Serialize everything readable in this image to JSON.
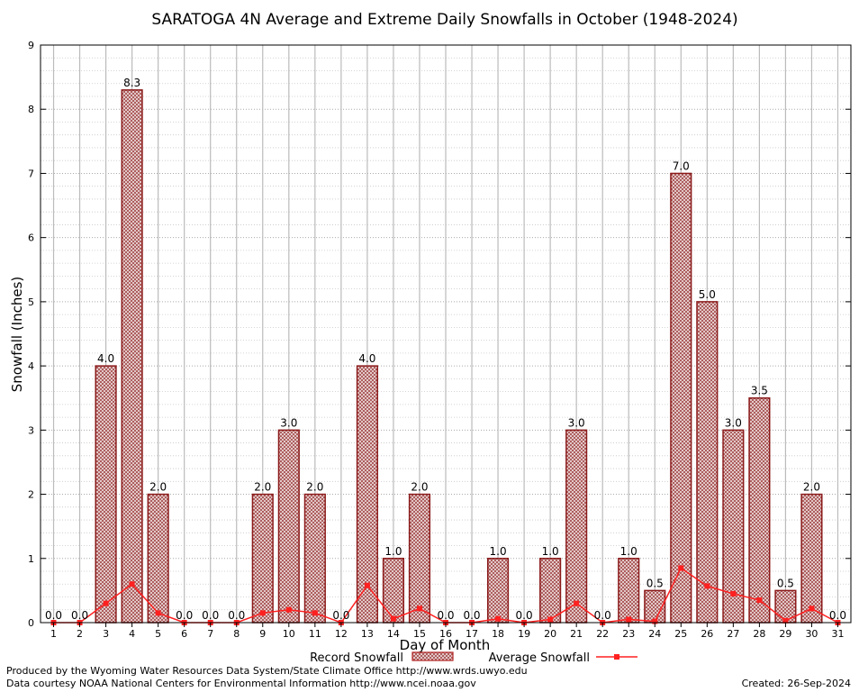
{
  "chart_data": {
    "type": "bar",
    "title": "SARATOGA 4N Average and Extreme Daily Snowfalls in October (1948-2024)",
    "xlabel": "Day of Month",
    "ylabel": "Snowfall (Inches)",
    "ylim": [
      0,
      9
    ],
    "yticks": [
      "0",
      "1",
      "2",
      "3",
      "4",
      "5",
      "6",
      "7",
      "8",
      "9"
    ],
    "categories": [
      "1",
      "2",
      "3",
      "4",
      "5",
      "6",
      "7",
      "8",
      "9",
      "10",
      "11",
      "12",
      "13",
      "14",
      "15",
      "16",
      "17",
      "18",
      "19",
      "20",
      "21",
      "22",
      "23",
      "24",
      "25",
      "26",
      "27",
      "28",
      "29",
      "30",
      "31"
    ],
    "series": [
      {
        "name": "Record Snowfall",
        "type": "bar",
        "color": "#b22222",
        "values": [
          0.0,
          0.0,
          4.0,
          8.3,
          2.0,
          0.0,
          0.0,
          0.0,
          2.0,
          3.0,
          2.0,
          0.0,
          4.0,
          1.0,
          2.0,
          0.0,
          0.0,
          1.0,
          0.0,
          1.0,
          3.0,
          0.0,
          1.0,
          0.5,
          7.0,
          5.0,
          3.0,
          3.5,
          0.5,
          2.0,
          0.0
        ],
        "labels": [
          "0.0",
          "0.0",
          "4.0",
          "8.3",
          "2.0",
          "0.0",
          "0.0",
          "0.0",
          "2.0",
          "3.0",
          "2.0",
          "0.0",
          "4.0",
          "1.0",
          "2.0",
          "0.0",
          "0.0",
          "1.0",
          "0.0",
          "1.0",
          "3.0",
          "0.0",
          "1.0",
          "0.5",
          "7.0",
          "5.0",
          "3.0",
          "3.5",
          "0.5",
          "2.0",
          "0.0"
        ]
      },
      {
        "name": "Average Snowfall",
        "type": "line",
        "color": "#ff2020",
        "values": [
          0.0,
          0.0,
          0.3,
          0.6,
          0.15,
          0.0,
          0.0,
          0.0,
          0.15,
          0.2,
          0.15,
          0.0,
          0.58,
          0.06,
          0.22,
          0.0,
          0.0,
          0.06,
          0.0,
          0.05,
          0.3,
          0.0,
          0.05,
          0.02,
          0.85,
          0.57,
          0.45,
          0.35,
          0.03,
          0.22,
          0.0
        ]
      }
    ],
    "grid": true,
    "legend": "bottom-center"
  },
  "footer": {
    "produced_by": "Produced by the Wyoming Water Resources Data System/State Climate Office http://www.wrds.uwyo.edu",
    "courtesy": "Data courtesy NOAA National Centers for Environmental Information http://www.ncei.noaa.gov",
    "created": "Created:  26-Sep-2024"
  }
}
